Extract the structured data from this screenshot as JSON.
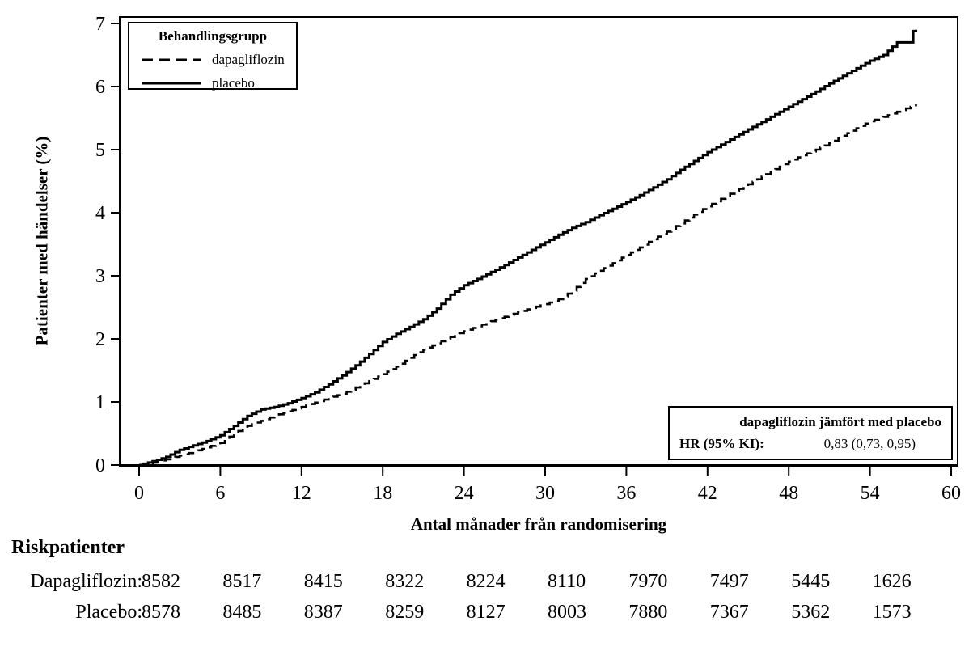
{
  "figure": {
    "y_axis": {
      "title": "Patienter med händelser (%)",
      "ticks": [
        "0",
        "1",
        "2",
        "3",
        "4",
        "5",
        "6",
        "7"
      ]
    },
    "x_axis": {
      "title": "Antal månader från randomisering",
      "ticks": [
        "0",
        "6",
        "12",
        "18",
        "24",
        "30",
        "36",
        "42",
        "48",
        "54",
        "60"
      ]
    },
    "legend": {
      "title": "Behandlingsgrupp",
      "items": [
        {
          "label": "dapagliflozin",
          "style": "dashed"
        },
        {
          "label": "placebo",
          "style": "solid"
        }
      ]
    },
    "annotation": {
      "heading": "dapagliflozin jämfört med placebo",
      "label": "HR (95% KI):",
      "value": "0,83 (0,73, 0,95)"
    },
    "risk_table": {
      "title": "Riskpatienter",
      "rows": [
        {
          "label": "Dapagliflozin:",
          "values": [
            "8582",
            "8517",
            "8415",
            "8322",
            "8224",
            "8110",
            "7970",
            "7497",
            "5445",
            "1626"
          ]
        },
        {
          "label": "Placebo:",
          "values": [
            "8578",
            "8485",
            "8387",
            "8259",
            "8127",
            "8003",
            "7880",
            "7367",
            "5362",
            "1573"
          ]
        }
      ]
    }
  },
  "chart_data": {
    "type": "line",
    "subtype": "kaplan-meier-step",
    "title": "",
    "xlabel": "Antal månader från randomisering",
    "ylabel": "Patienter med händelser (%)",
    "xlim": [
      0,
      60
    ],
    "ylim": [
      0,
      7
    ],
    "x_ticks": [
      0,
      6,
      12,
      18,
      24,
      30,
      36,
      42,
      48,
      54,
      60
    ],
    "y_ticks": [
      0,
      1,
      2,
      3,
      4,
      5,
      6,
      7
    ],
    "grid": false,
    "legend_position": "top-left",
    "line_color": "#000000",
    "annotation": "dapagliflozin jämfört med placebo — HR (95% KI): 0,83 (0,73, 0,95)",
    "series": [
      {
        "name": "dapagliflozin",
        "style": "dashed",
        "color": "#000000",
        "points": [
          [
            0,
            0
          ],
          [
            1,
            0.04
          ],
          [
            2,
            0.09
          ],
          [
            3,
            0.15
          ],
          [
            4,
            0.21
          ],
          [
            5,
            0.28
          ],
          [
            6,
            0.35
          ],
          [
            7,
            0.5
          ],
          [
            8,
            0.62
          ],
          [
            9,
            0.7
          ],
          [
            10,
            0.78
          ],
          [
            11,
            0.85
          ],
          [
            12,
            0.92
          ],
          [
            13,
            0.99
          ],
          [
            14,
            1.06
          ],
          [
            15,
            1.13
          ],
          [
            16,
            1.23
          ],
          [
            17,
            1.33
          ],
          [
            18,
            1.44
          ],
          [
            19,
            1.56
          ],
          [
            20,
            1.7
          ],
          [
            21,
            1.83
          ],
          [
            22,
            1.93
          ],
          [
            23,
            2.03
          ],
          [
            24,
            2.12
          ],
          [
            25,
            2.2
          ],
          [
            26,
            2.28
          ],
          [
            27,
            2.35
          ],
          [
            28,
            2.42
          ],
          [
            29,
            2.49
          ],
          [
            30,
            2.55
          ],
          [
            31,
            2.63
          ],
          [
            32,
            2.76
          ],
          [
            33,
            2.95
          ],
          [
            34,
            3.08
          ],
          [
            35,
            3.2
          ],
          [
            36,
            3.33
          ],
          [
            37,
            3.45
          ],
          [
            38,
            3.58
          ],
          [
            39,
            3.7
          ],
          [
            40,
            3.83
          ],
          [
            41,
            3.97
          ],
          [
            42,
            4.1
          ],
          [
            43,
            4.22
          ],
          [
            44,
            4.34
          ],
          [
            45,
            4.45
          ],
          [
            46,
            4.57
          ],
          [
            47,
            4.69
          ],
          [
            48,
            4.81
          ],
          [
            49,
            4.91
          ],
          [
            50,
            5.0
          ],
          [
            51,
            5.1
          ],
          [
            52,
            5.22
          ],
          [
            53,
            5.34
          ],
          [
            54,
            5.45
          ],
          [
            55,
            5.52
          ],
          [
            56,
            5.6
          ],
          [
            57,
            5.68
          ],
          [
            57.4,
            5.72
          ]
        ]
      },
      {
        "name": "placebo",
        "style": "solid",
        "color": "#000000",
        "points": [
          [
            0,
            0
          ],
          [
            1,
            0.06
          ],
          [
            2,
            0.13
          ],
          [
            3,
            0.24
          ],
          [
            4,
            0.31
          ],
          [
            5,
            0.38
          ],
          [
            6,
            0.47
          ],
          [
            7,
            0.62
          ],
          [
            8,
            0.78
          ],
          [
            9,
            0.88
          ],
          [
            10,
            0.92
          ],
          [
            11,
            0.98
          ],
          [
            12,
            1.06
          ],
          [
            13,
            1.15
          ],
          [
            14,
            1.28
          ],
          [
            15,
            1.42
          ],
          [
            16,
            1.58
          ],
          [
            17,
            1.76
          ],
          [
            18,
            1.95
          ],
          [
            19,
            2.08
          ],
          [
            20,
            2.19
          ],
          [
            21,
            2.31
          ],
          [
            22,
            2.48
          ],
          [
            23,
            2.7
          ],
          [
            24,
            2.85
          ],
          [
            25,
            2.95
          ],
          [
            26,
            3.06
          ],
          [
            27,
            3.17
          ],
          [
            28,
            3.29
          ],
          [
            29,
            3.41
          ],
          [
            30,
            3.53
          ],
          [
            31,
            3.65
          ],
          [
            32,
            3.76
          ],
          [
            33,
            3.85
          ],
          [
            34,
            3.96
          ],
          [
            35,
            4.06
          ],
          [
            36,
            4.17
          ],
          [
            37,
            4.28
          ],
          [
            38,
            4.4
          ],
          [
            39,
            4.53
          ],
          [
            40,
            4.68
          ],
          [
            41,
            4.82
          ],
          [
            42,
            4.96
          ],
          [
            43,
            5.08
          ],
          [
            44,
            5.2
          ],
          [
            45,
            5.32
          ],
          [
            46,
            5.44
          ],
          [
            47,
            5.56
          ],
          [
            48,
            5.68
          ],
          [
            49,
            5.8
          ],
          [
            50,
            5.92
          ],
          [
            51,
            6.05
          ],
          [
            52,
            6.17
          ],
          [
            53,
            6.29
          ],
          [
            54,
            6.41
          ],
          [
            55,
            6.5
          ],
          [
            56,
            6.7
          ],
          [
            57,
            6.7
          ],
          [
            57.2,
            6.88
          ],
          [
            57.4,
            6.9
          ]
        ]
      }
    ],
    "risk_table": {
      "title": "Riskpatienter",
      "time_points": [
        0,
        6,
        12,
        18,
        24,
        30,
        36,
        42,
        48,
        54
      ],
      "rows": [
        {
          "label": "Dapagliflozin:",
          "values": [
            8582,
            8517,
            8415,
            8322,
            8224,
            8110,
            7970,
            7497,
            5445,
            1626
          ]
        },
        {
          "label": "Placebo:",
          "values": [
            8578,
            8485,
            8387,
            8259,
            8127,
            8003,
            7880,
            7367,
            5362,
            1573
          ]
        }
      ]
    }
  }
}
